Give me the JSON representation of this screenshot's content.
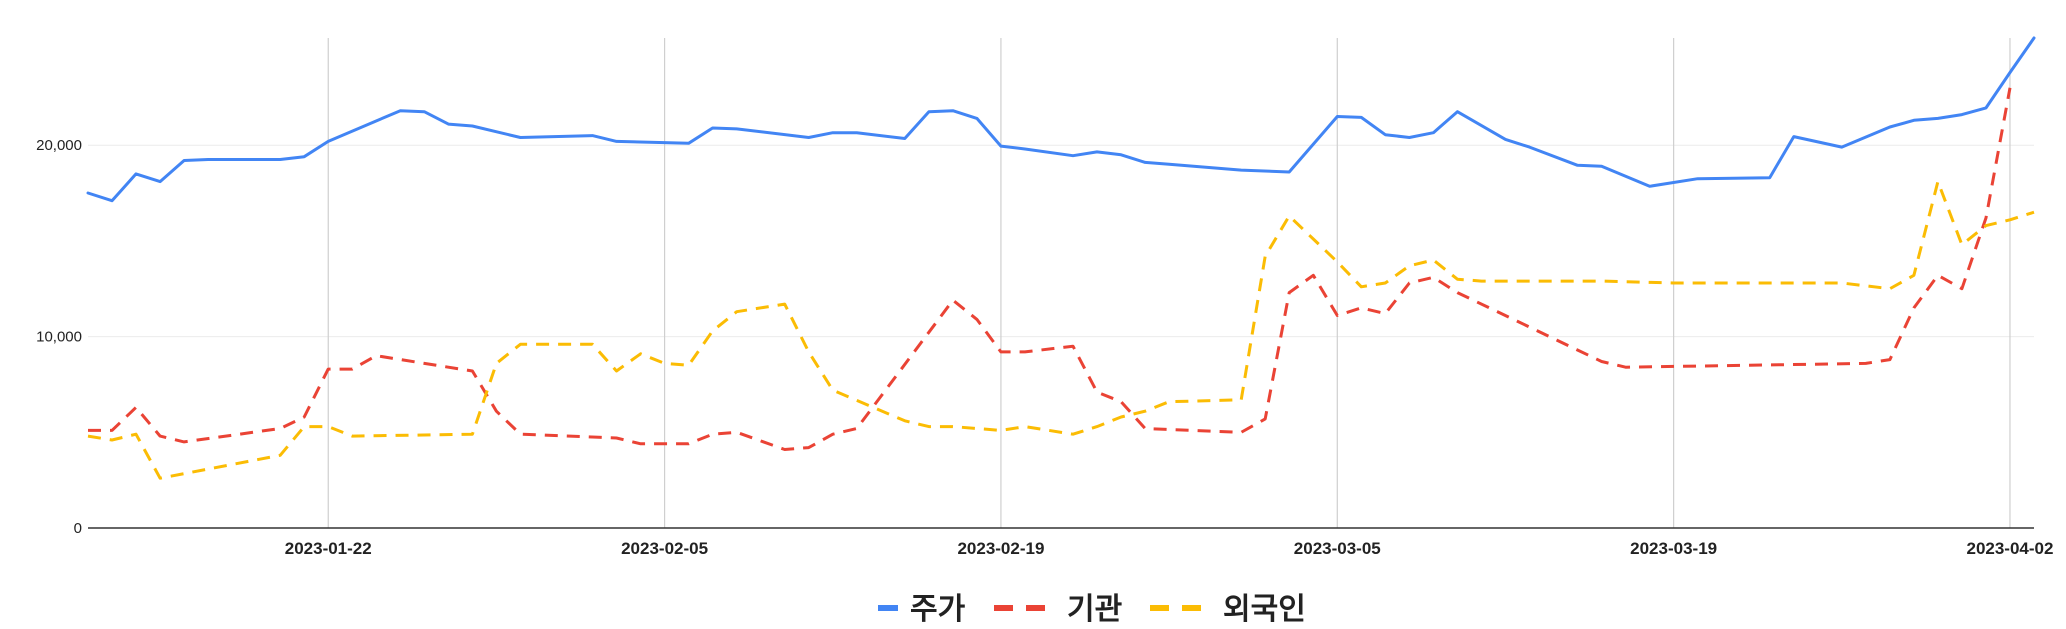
{
  "chart_data": {
    "type": "line",
    "title": "",
    "xlabel": "",
    "ylabel": "",
    "x_start": "2023-01-12",
    "x_end": "2023-04-03",
    "xticks": [
      "2023-01-22",
      "2023-02-05",
      "2023-02-19",
      "2023-03-05",
      "2023-03-19",
      "2023-04-02"
    ],
    "yticks": [
      0,
      10000,
      20000
    ],
    "ytick_labels": [
      "0",
      "10,000",
      "20,000"
    ],
    "ylim": [
      0,
      25600
    ],
    "grid": {
      "vertical": true,
      "horizontal": true
    },
    "legend_position": "bottom",
    "series": [
      {
        "name": "주가",
        "color": "#4285F4",
        "dash": "solid",
        "x": [
          "2023-01-12",
          "2023-01-13",
          "2023-01-14",
          "2023-01-15",
          "2023-01-16",
          "2023-01-17",
          "2023-01-20",
          "2023-01-21",
          "2023-01-22",
          "2023-01-25",
          "2023-01-26",
          "2023-01-27",
          "2023-01-28",
          "2023-01-30",
          "2023-02-02",
          "2023-02-03",
          "2023-02-06",
          "2023-02-07",
          "2023-02-08",
          "2023-02-11",
          "2023-02-12",
          "2023-02-13",
          "2023-02-15",
          "2023-02-16",
          "2023-02-17",
          "2023-02-18",
          "2023-02-19",
          "2023-02-20",
          "2023-02-22",
          "2023-02-23",
          "2023-02-24",
          "2023-02-25",
          "2023-02-26",
          "2023-03-01",
          "2023-03-03",
          "2023-03-05",
          "2023-03-06",
          "2023-03-07",
          "2023-03-08",
          "2023-03-09",
          "2023-03-10",
          "2023-03-12",
          "2023-03-13",
          "2023-03-15",
          "2023-03-16",
          "2023-03-18",
          "2023-03-20",
          "2023-03-23",
          "2023-03-24",
          "2023-03-26",
          "2023-03-28",
          "2023-03-29",
          "2023-03-30",
          "2023-03-31",
          "2023-04-01",
          "2023-04-02",
          "2023-04-03"
        ],
        "values": [
          17500,
          17100,
          18500,
          18100,
          19200,
          19250,
          19250,
          19400,
          20200,
          21800,
          21750,
          21100,
          21000,
          20400,
          20500,
          20200,
          20100,
          20900,
          20850,
          20400,
          20650,
          20650,
          20350,
          21750,
          21800,
          21400,
          19950,
          19800,
          19450,
          19650,
          19500,
          19100,
          19000,
          18700,
          18600,
          21500,
          21450,
          20550,
          20400,
          20650,
          21750,
          20300,
          19900,
          18950,
          18900,
          17850,
          18250,
          18300,
          20450,
          19900,
          20950,
          21300,
          21400,
          21600,
          21950,
          23800,
          25600
        ]
      },
      {
        "name": "기관",
        "color": "#EA4335",
        "dash": "dashed",
        "x": [
          "2023-01-12",
          "2023-01-13",
          "2023-01-14",
          "2023-01-15",
          "2023-01-16",
          "2023-01-20",
          "2023-01-21",
          "2023-01-22",
          "2023-01-23",
          "2023-01-24",
          "2023-01-28",
          "2023-01-29",
          "2023-01-30",
          "2023-02-03",
          "2023-02-04",
          "2023-02-06",
          "2023-02-07",
          "2023-02-08",
          "2023-02-10",
          "2023-02-11",
          "2023-02-12",
          "2023-02-13",
          "2023-02-17",
          "2023-02-18",
          "2023-02-19",
          "2023-02-20",
          "2023-02-22",
          "2023-02-23",
          "2023-02-24",
          "2023-02-25",
          "2023-03-01",
          "2023-03-02",
          "2023-03-03",
          "2023-03-04",
          "2023-03-05",
          "2023-03-06",
          "2023-03-07",
          "2023-03-08",
          "2023-03-09",
          "2023-03-10",
          "2023-03-16",
          "2023-03-17",
          "2023-03-27",
          "2023-03-28",
          "2023-03-29",
          "2023-03-30",
          "2023-03-31",
          "2023-04-01",
          "2023-04-02"
        ],
        "values": [
          5100,
          5100,
          6300,
          4800,
          4500,
          5200,
          5800,
          8300,
          8300,
          9000,
          8200,
          6100,
          4900,
          4700,
          4400,
          4400,
          4900,
          5000,
          4100,
          4200,
          4900,
          5200,
          11900,
          10900,
          9200,
          9200,
          9500,
          7100,
          6600,
          5200,
          5000,
          5700,
          12300,
          13200,
          11100,
          11500,
          11200,
          12800,
          13100,
          12300,
          8700,
          8400,
          8600,
          8800,
          11500,
          13200,
          12500,
          16200,
          23000
        ]
      },
      {
        "name": "외국인",
        "color": "#FBBC04",
        "dash": "dashed",
        "x": [
          "2023-01-12",
          "2023-01-13",
          "2023-01-14",
          "2023-01-15",
          "2023-01-20",
          "2023-01-21",
          "2023-01-22",
          "2023-01-23",
          "2023-01-28",
          "2023-01-29",
          "2023-01-30",
          "2023-02-02",
          "2023-02-03",
          "2023-02-04",
          "2023-02-05",
          "2023-02-06",
          "2023-02-07",
          "2023-02-08",
          "2023-02-10",
          "2023-02-11",
          "2023-02-12",
          "2023-02-15",
          "2023-02-16",
          "2023-02-17",
          "2023-02-18",
          "2023-02-19",
          "2023-02-20",
          "2023-02-22",
          "2023-02-23",
          "2023-02-24",
          "2023-02-25",
          "2023-02-26",
          "2023-03-01",
          "2023-03-02",
          "2023-03-03",
          "2023-03-04",
          "2023-03-05",
          "2023-03-06",
          "2023-03-07",
          "2023-03-08",
          "2023-03-09",
          "2023-03-10",
          "2023-03-11",
          "2023-03-13",
          "2023-03-16",
          "2023-03-19",
          "2023-03-26",
          "2023-03-28",
          "2023-03-29",
          "2023-03-30",
          "2023-03-31",
          "2023-04-01",
          "2023-04-02",
          "2023-04-03"
        ],
        "values": [
          4800,
          4600,
          4900,
          2600,
          3800,
          5300,
          5300,
          4800,
          4900,
          8600,
          9600,
          9600,
          8200,
          9100,
          8600,
          8500,
          10300,
          11300,
          11700,
          9200,
          7200,
          5600,
          5300,
          5300,
          5200,
          5100,
          5300,
          4900,
          5300,
          5800,
          6100,
          6600,
          6700,
          14200,
          16300,
          15100,
          13900,
          12600,
          12800,
          13700,
          14000,
          13000,
          12900,
          12900,
          12900,
          12800,
          12800,
          12500,
          13200,
          18100,
          14800,
          15800,
          16100,
          16500
        ]
      }
    ]
  }
}
